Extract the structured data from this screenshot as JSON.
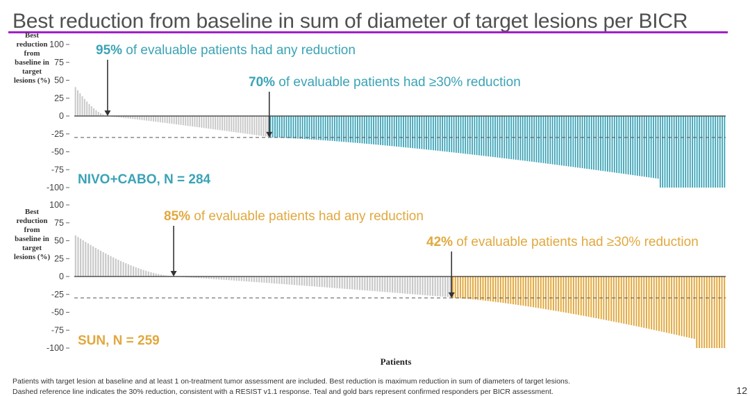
{
  "title": "Best reduction from baseline in sum of diameter of target lesions per BICR",
  "colors": {
    "teal": "#3aa3b6",
    "gold": "#e1a83e",
    "gray": "#c8c8c8",
    "title_rule": "#a020c8",
    "axis": "#333333"
  },
  "chart_data": [
    {
      "type": "bar",
      "name": "NIVO+CABO, N = 284",
      "n_patients": 284,
      "ylabel": "Best reduction from baseline in target lesions (%)",
      "ylim": [
        -100,
        100
      ],
      "yticks": [
        "100",
        "75",
        "50",
        "25",
        "0",
        "-25",
        "-50",
        "-75",
        "-100"
      ],
      "reference_line": -30,
      "max_increase": 40,
      "pct_any_reduction": 95,
      "pct_30_reduction": 70,
      "callouts": [
        {
          "pct": "95%",
          "text": " of evaluable patients had any reduction"
        },
        {
          "pct": "70%",
          "text": " of evaluable patients had ≥30% reduction"
        }
      ]
    },
    {
      "type": "bar",
      "name": "SUN, N = 259",
      "n_patients": 259,
      "ylabel": "Best reduction from baseline in target lesions (%)",
      "ylim": [
        -100,
        100
      ],
      "yticks": [
        "100",
        "75",
        "50",
        "25",
        "0",
        "-25",
        "-50",
        "-75",
        "-100"
      ],
      "reference_line": -30,
      "max_increase": 57,
      "pct_any_reduction": 85,
      "pct_30_reduction": 42,
      "callouts": [
        {
          "pct": "85%",
          "text": " of evaluable patients had any reduction"
        },
        {
          "pct": "42%",
          "text": " of evaluable patients had ≥30% reduction"
        }
      ]
    }
  ],
  "xlabel": "Patients",
  "footnotes": [
    "Patients with target lesion at baseline and at least 1 on-treatment tumor assessment are included. Best reduction is maximum reduction in sum of diameters of target lesions.",
    "Dashed reference line indicates the 30% reduction, consistent with a RESIST v1.1 response. Teal and gold bars represent confirmed responders per BICR assessment."
  ],
  "page_number": "12"
}
